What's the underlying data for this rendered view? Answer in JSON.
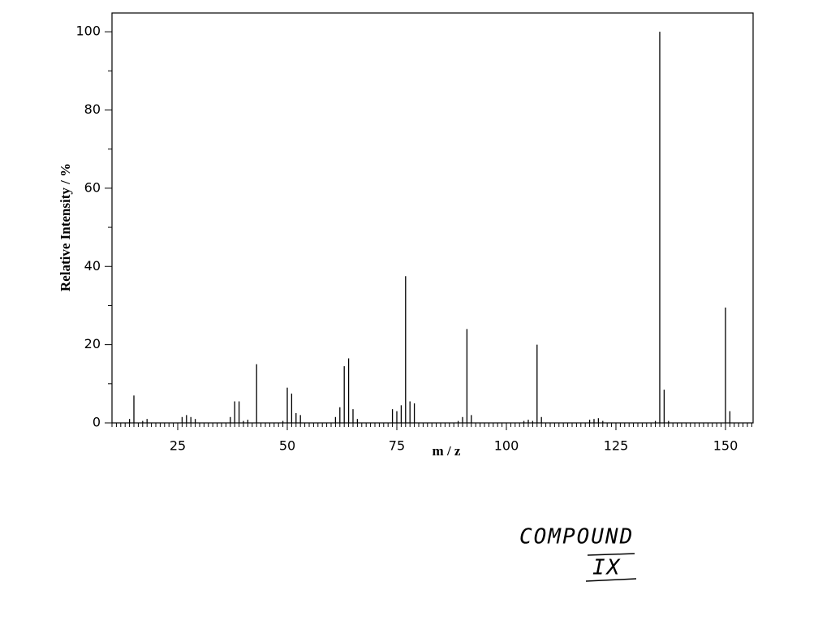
{
  "chart_data": {
    "type": "stem",
    "xlabel": "m / z",
    "ylabel": "Relative Intensity / %",
    "x": [
      14,
      15,
      17,
      18,
      26,
      27,
      28,
      29,
      37,
      38,
      39,
      40,
      41,
      43,
      49,
      50,
      51,
      52,
      53,
      61,
      62,
      63,
      64,
      65,
      66,
      74,
      75,
      76,
      77,
      78,
      79,
      89,
      90,
      91,
      92,
      104,
      105,
      106,
      107,
      108,
      119,
      120,
      121,
      122,
      134,
      135,
      136,
      137,
      150,
      151
    ],
    "values": [
      1,
      7,
      0.5,
      1,
      1.5,
      2,
      1.5,
      1,
      1.5,
      5.5,
      5.5,
      0.5,
      0.8,
      15,
      0.5,
      9,
      7.5,
      2.5,
      2,
      1.5,
      4,
      14.5,
      16.5,
      3.5,
      1,
      3.5,
      3,
      4.5,
      37.5,
      5.5,
      5,
      0.5,
      1.5,
      24,
      2,
      0.5,
      0.8,
      0.5,
      20,
      1.5,
      0.8,
      1,
      1.2,
      0.5,
      0.5,
      100,
      8.5,
      0.5,
      29.5,
      3
    ],
    "color": "#000000",
    "xlim": [
      10,
      156.3
    ],
    "xticks": [
      25,
      50,
      75,
      100,
      125,
      150
    ],
    "ylim": [
      0,
      104.8
    ],
    "yticks": [
      0,
      20,
      40,
      60,
      80,
      100
    ],
    "annotation": [
      "COMPOUND",
      "IX"
    ]
  }
}
